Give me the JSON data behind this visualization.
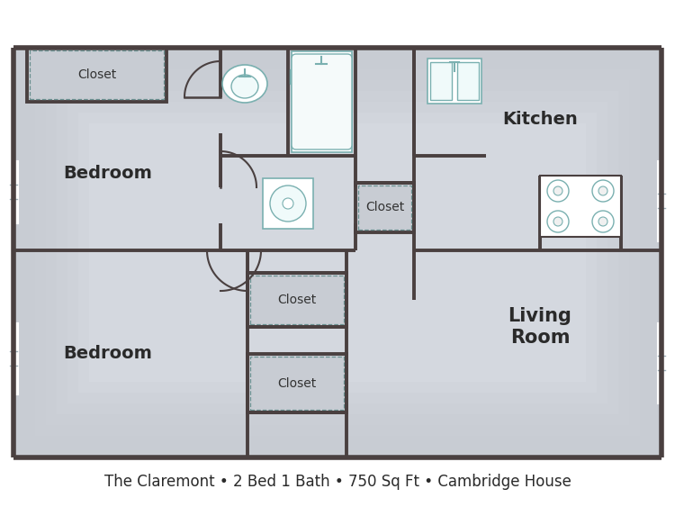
{
  "title": "The Claremont • 2 Bed 1 Bath • 750 Sq Ft • Cambridge House",
  "title_fontsize": 12,
  "wall_color": "#4a4040",
  "fixture_color": "#7ab0b0",
  "room_labels": {
    "bedroom1": "Bedroom",
    "bedroom2": "Bedroom",
    "kitchen": "Kitchen",
    "living": "Living\nRoom"
  },
  "closet_labels": [
    "Closet",
    "Closet",
    "Closet",
    "Closet"
  ],
  "label_fontsize": 13,
  "small_fontsize": 9,
  "fig_bg": "#ffffff",
  "floor_bg": "#c8ccd3",
  "floor_bg2": "#d5d9e0"
}
